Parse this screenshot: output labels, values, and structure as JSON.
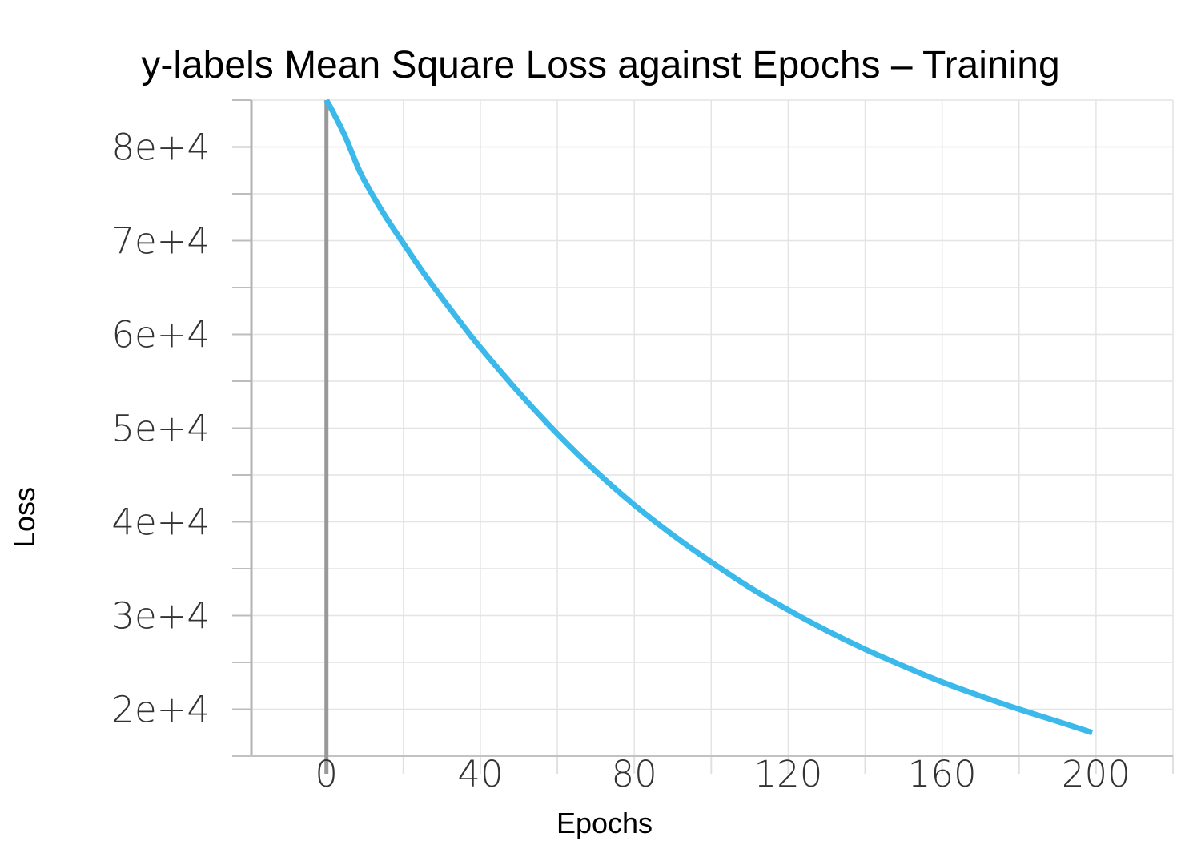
{
  "chart_data": {
    "type": "line",
    "title": "y-labels Mean Square Loss against Epochs – Training",
    "xlabel": "Epochs",
    "ylabel": "Loss",
    "xlim": [
      -19.5,
      220
    ],
    "ylim": [
      15000,
      85000
    ],
    "x_ticks": [
      0,
      40,
      80,
      120,
      160,
      200
    ],
    "x_tick_labels": [
      "0",
      "40",
      "80",
      "120",
      "160",
      "200"
    ],
    "x_minor_ticks": [
      -20,
      20,
      60,
      100,
      140,
      180,
      220
    ],
    "y_ticks": [
      20000,
      30000,
      40000,
      50000,
      60000,
      70000,
      80000
    ],
    "y_tick_labels": [
      "2e+4",
      "3e+4",
      "4e+4",
      "5e+4",
      "6e+4",
      "7e+4",
      "8e+4"
    ],
    "y_minor_ticks": [
      15000,
      25000,
      35000,
      45000,
      55000,
      65000,
      75000,
      85000
    ],
    "zero_line_x": 0,
    "grid": true,
    "series": [
      {
        "color": "#3bb9ea",
        "x": [
          0,
          2,
          5,
          8,
          10,
          15,
          20,
          25,
          30,
          35,
          40,
          50,
          60,
          70,
          80,
          90,
          100,
          110,
          120,
          130,
          140,
          150,
          160,
          170,
          180,
          190,
          199
        ],
        "y": [
          85000,
          83500,
          81000,
          78000,
          76300,
          72800,
          69700,
          66700,
          63900,
          61200,
          58600,
          53800,
          49400,
          45400,
          41800,
          38600,
          35700,
          33000,
          30600,
          28400,
          26400,
          24600,
          22900,
          21400,
          20000,
          18700,
          17500
        ]
      }
    ]
  }
}
